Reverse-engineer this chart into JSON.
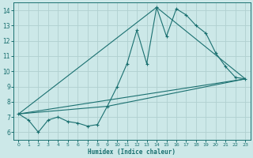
{
  "xlabel": "Humidex (Indice chaleur)",
  "bg_color": "#cce8e8",
  "grid_color": "#b0d0d0",
  "line_color": "#1a7070",
  "xlim": [
    -0.5,
    23.5
  ],
  "ylim": [
    5.5,
    14.5
  ],
  "xticks": [
    0,
    1,
    2,
    3,
    4,
    5,
    6,
    7,
    8,
    9,
    10,
    11,
    12,
    13,
    14,
    15,
    16,
    17,
    18,
    19,
    20,
    21,
    22,
    23
  ],
  "yticks": [
    6,
    7,
    8,
    9,
    10,
    11,
    12,
    13,
    14
  ],
  "series1_x": [
    0,
    1,
    2,
    3,
    4,
    5,
    6,
    7,
    8,
    9,
    10,
    11,
    12,
    13,
    14,
    15,
    16,
    17,
    18,
    19,
    20,
    21,
    22,
    23
  ],
  "series1_y": [
    7.2,
    6.8,
    6.0,
    6.8,
    7.0,
    6.7,
    6.6,
    6.4,
    6.5,
    7.7,
    9.0,
    10.5,
    12.7,
    10.5,
    14.2,
    12.3,
    14.1,
    13.7,
    13.0,
    12.5,
    11.2,
    10.3,
    9.6,
    9.5
  ],
  "series2_x": [
    0,
    23
  ],
  "series2_y": [
    7.2,
    9.5
  ],
  "series3_x": [
    0,
    14,
    23
  ],
  "series3_y": [
    7.2,
    14.2,
    9.5
  ],
  "series4_x": [
    0,
    9,
    23
  ],
  "series4_y": [
    7.2,
    7.7,
    9.5
  ]
}
